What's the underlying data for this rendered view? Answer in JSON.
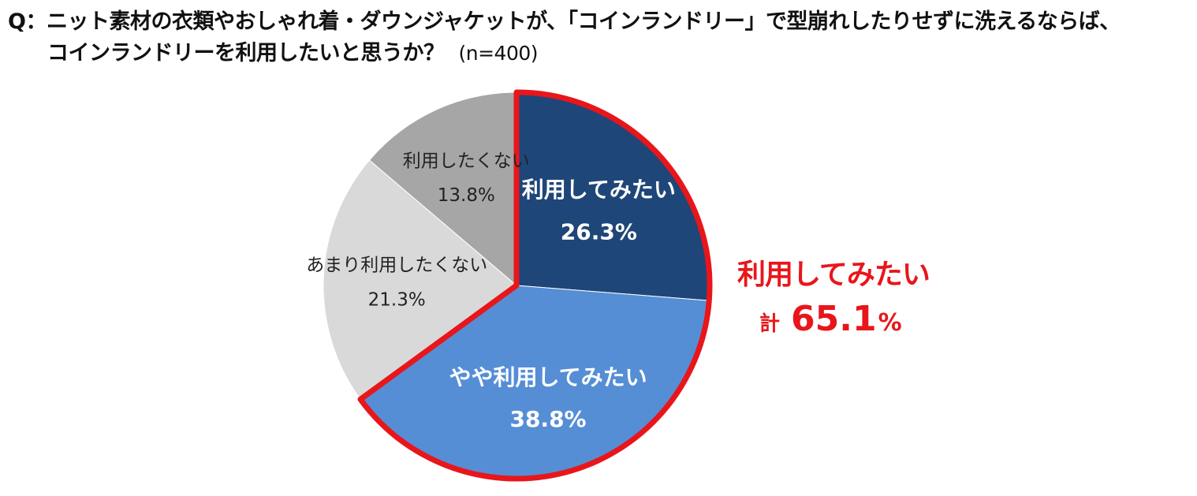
{
  "title": {
    "line1": "Q：ニット素材の衣類やおしゃれ着・ダウンジャケットが、「コインランドリー」で型崩れしたりせずに洗えるならば、",
    "line2": "コインランドリーを利用したいと思うか？",
    "sample": "(n=400)"
  },
  "chart_data": {
    "type": "pie",
    "title": "",
    "unit": "%",
    "slices": [
      {
        "label": "利用してみたい",
        "value": 26.3,
        "value_label": "26.3%",
        "color": "#1f4678",
        "text_color": "#ffffff",
        "bold": true
      },
      {
        "label": "やや利用してみたい",
        "value": 38.8,
        "value_label": "38.8%",
        "color": "#558ed5",
        "text_color": "#ffffff",
        "bold": true
      },
      {
        "label": "あまり利用したくない",
        "value": 21.3,
        "value_label": "21.3%",
        "color": "#d9d9d9",
        "text_color": "#222222",
        "bold": false
      },
      {
        "label": "利用したくない",
        "value": 13.8,
        "value_label": "13.8%",
        "color": "#a6a6a6",
        "text_color": "#222222",
        "bold": false
      }
    ],
    "start": "12 o'clock",
    "direction": "clockwise",
    "highlight": {
      "slices": [
        0,
        1
      ],
      "outline_color": "#e8161b"
    }
  },
  "total": {
    "label": "利用してみたい",
    "prefix": "計",
    "number": "65.1",
    "unit": "%"
  }
}
